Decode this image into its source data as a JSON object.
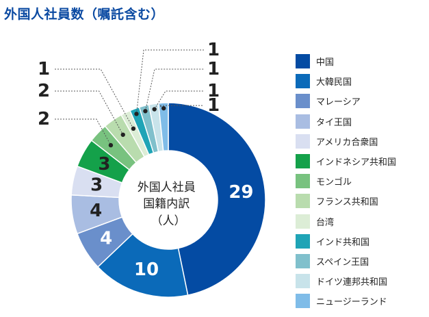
{
  "title": "外国人社員数（嘱託含む）",
  "chart_data": {
    "type": "pie",
    "donut": true,
    "center_label": [
      "外国人社員",
      "国籍内訳",
      "（人）"
    ],
    "categories": [
      "中国",
      "大韓民国",
      "マレーシア",
      "タイ王国",
      "アメリカ合衆国",
      "インドネシア共和国",
      "モンゴル",
      "フランス共和国",
      "台湾",
      "インド共和国",
      "スペイン王国",
      "ドイツ連邦共和国",
      "ニュージーランド"
    ],
    "values": [
      29,
      10,
      4,
      4,
      3,
      3,
      2,
      2,
      1,
      1,
      1,
      1,
      1
    ],
    "colors": [
      "#044ba3",
      "#0b6ab9",
      "#6a8fcb",
      "#a9bde2",
      "#d9dff1",
      "#14a14a",
      "#78c27f",
      "#b9dcae",
      "#dcedd6",
      "#1fa4b6",
      "#80c0cc",
      "#c8e3ea",
      "#7fbce8"
    ],
    "legend_position": "right"
  }
}
